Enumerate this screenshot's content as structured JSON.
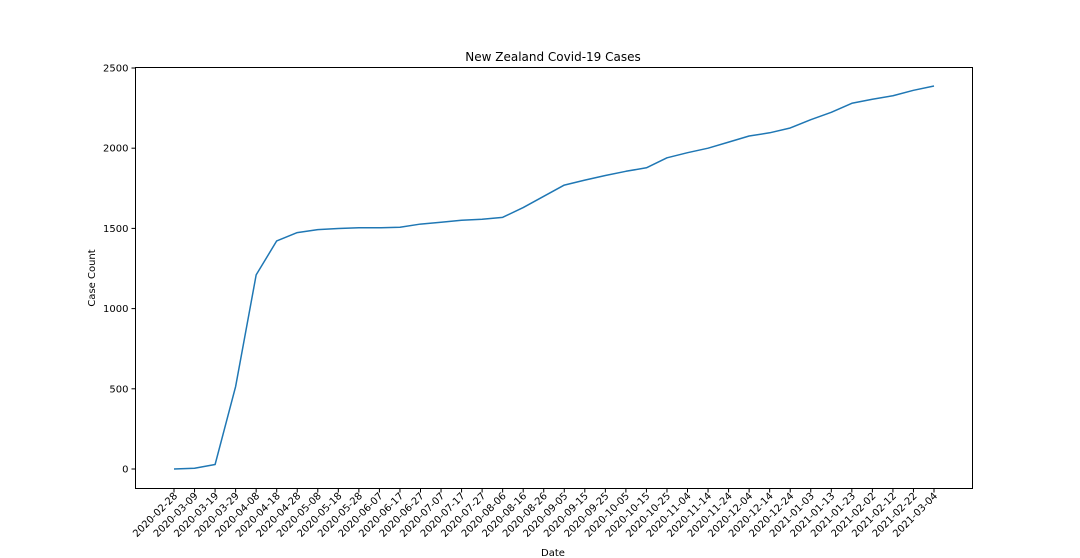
{
  "chart_data": {
    "type": "line",
    "title": "New Zealand Covid-19 Cases",
    "xlabel": "Date",
    "ylabel": "Case Count",
    "ylim": [
      -120,
      2500
    ],
    "yticks": [
      0,
      500,
      1000,
      1500,
      2000,
      2500
    ],
    "grid": false,
    "legend": "none",
    "line_color": "#1f77b4",
    "categories": [
      "2020-02-28",
      "2020-03-09",
      "2020-03-19",
      "2020-03-29",
      "2020-04-08",
      "2020-04-18",
      "2020-04-28",
      "2020-05-08",
      "2020-05-18",
      "2020-05-28",
      "2020-06-07",
      "2020-06-17",
      "2020-06-27",
      "2020-07-07",
      "2020-07-17",
      "2020-07-27",
      "2020-08-06",
      "2020-08-16",
      "2020-08-26",
      "2020-09-05",
      "2020-09-15",
      "2020-09-25",
      "2020-10-05",
      "2020-10-15",
      "2020-10-25",
      "2020-11-04",
      "2020-11-14",
      "2020-11-24",
      "2020-12-04",
      "2020-12-14",
      "2020-12-24",
      "2021-01-03",
      "2021-01-13",
      "2021-01-23",
      "2021-02-02",
      "2021-02-12",
      "2021-02-22",
      "2021-03-04"
    ],
    "series": [
      {
        "values": [
          0,
          5,
          28,
          514,
          1210,
          1422,
          1474,
          1492,
          1499,
          1504,
          1504,
          1507,
          1527,
          1538,
          1551,
          1557,
          1569,
          1630,
          1700,
          1770,
          1801,
          1830,
          1856,
          1878,
          1940,
          1972,
          2000,
          2038,
          2076,
          2096,
          2126,
          2178,
          2224,
          2280,
          2305,
          2327,
          2361,
          2388
        ]
      }
    ]
  }
}
